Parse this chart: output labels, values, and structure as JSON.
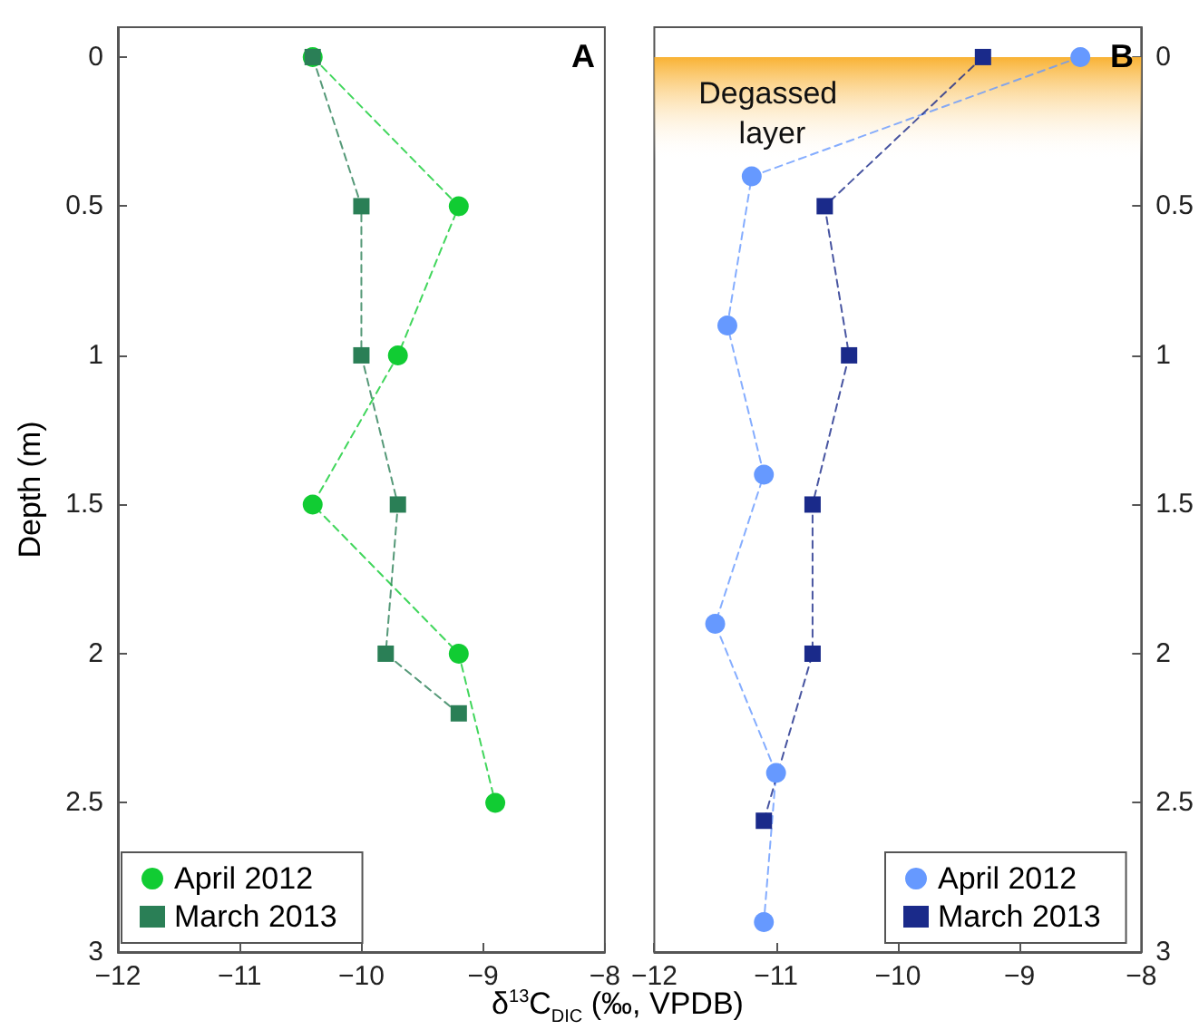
{
  "chart_data": [
    {
      "type": "line",
      "title": "A",
      "xlabel": "δ$^{13}$C$_{DIC}$ (‰, VPDB)",
      "ylabel": "Depth (m)",
      "xlim": [
        -12,
        -8
      ],
      "xticks": [
        {
          "value": -12,
          "label": "−12"
        },
        {
          "value": -11,
          "label": "−11"
        },
        {
          "value": -10,
          "label": "−10"
        },
        {
          "value": -9,
          "label": "−9"
        },
        {
          "value": -8,
          "label": "−8"
        }
      ],
      "ylim": [
        3,
        -0.1
      ],
      "yticks": [
        0,
        0.5,
        1,
        1.5,
        2,
        2.5,
        3
      ],
      "grid": false,
      "legend": "bottom left",
      "line_style": "dashed",
      "series": [
        {
          "name": "April 2012",
          "color": "#11cc33",
          "marker": "circle",
          "x": [
            -10.4,
            -9.2,
            -9.7,
            -10.4,
            -9.2,
            -8.9
          ],
          "values": [
            0,
            0.5,
            1,
            1.5,
            2,
            2.5
          ]
        },
        {
          "name": "March 2013",
          "color": "#2a7f56",
          "marker": "square",
          "x": [
            -10.4,
            -10.0,
            -10.0,
            -9.7,
            -9.8,
            -9.2
          ],
          "values": [
            0,
            0.5,
            1,
            1.5,
            2,
            2.2
          ]
        }
      ]
    },
    {
      "type": "line",
      "title": "B",
      "xlim": [
        -12,
        -8
      ],
      "xticks": [
        {
          "value": -12,
          "label": "−12"
        },
        {
          "value": -11,
          "label": "−11"
        },
        {
          "value": -10,
          "label": "−10"
        },
        {
          "value": -9,
          "label": "−9"
        },
        {
          "value": -8,
          "label": "−8"
        }
      ],
      "ylim": [
        3,
        -0.1
      ],
      "yticks": [
        0,
        0.5,
        1,
        1.5,
        2,
        2.5,
        3
      ],
      "grid": false,
      "legend": "bottom right",
      "line_style": "dashed",
      "bands": [
        {
          "axis": "y",
          "from": 0,
          "to": 0.35,
          "label": "Degassed layer",
          "color": "#f9b233"
        }
      ],
      "series": [
        {
          "name": "April 2012",
          "color": "#6699ff",
          "marker": "circle",
          "x": [
            -8.5,
            -11.2,
            -11.4,
            -11.1,
            -11.5,
            -11.0,
            -11.1
          ],
          "values": [
            0,
            0.4,
            0.9,
            1.4,
            1.9,
            2.4,
            2.9
          ]
        },
        {
          "name": "March 2013",
          "color": "#1a2a8a",
          "marker": "square",
          "x": [
            -9.3,
            -10.6,
            -10.4,
            -10.7,
            -10.7,
            -11.1
          ],
          "values": [
            0,
            0.5,
            1,
            1.5,
            2,
            2.56
          ]
        }
      ]
    }
  ]
}
